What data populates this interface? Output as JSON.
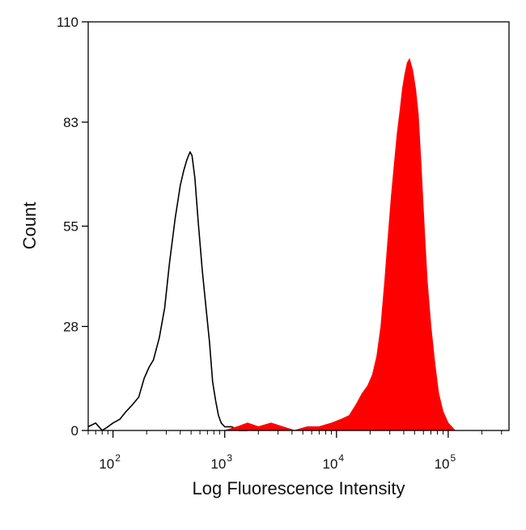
{
  "chart_data": {
    "type": "area",
    "title": "",
    "xlabel": "Log Fluorescence Intensity",
    "ylabel": "Count",
    "x_scale": "log",
    "xlim": [
      60,
      350000
    ],
    "ylim": [
      0,
      110
    ],
    "y_ticks": [
      "0",
      "28",
      "55",
      "83",
      "110"
    ],
    "x_ticks": [
      {
        "base": "10",
        "exp": "2",
        "value": 100
      },
      {
        "base": "10",
        "exp": "3",
        "value": 1000
      },
      {
        "base": "10",
        "exp": "4",
        "value": 10000
      },
      {
        "base": "10",
        "exp": "5",
        "value": 100000
      }
    ],
    "series": [
      {
        "style": "outline",
        "color": "#000000",
        "x": [
          60,
          70,
          80,
          90,
          100,
          115,
          130,
          150,
          170,
          190,
          210,
          230,
          260,
          290,
          320,
          360,
          400,
          430,
          460,
          490,
          510,
          540,
          580,
          630,
          680,
          730,
          780,
          830,
          880,
          930,
          1000,
          1150,
          1350,
          1600
        ],
        "y": [
          1,
          2,
          0,
          1,
          2,
          3,
          5,
          7,
          9,
          14,
          17,
          19,
          25,
          33,
          45,
          57,
          66,
          70,
          73,
          75,
          74,
          68,
          56,
          43,
          33,
          24,
          13,
          8,
          4,
          2,
          1,
          1,
          0,
          0
        ]
      },
      {
        "style": "filled",
        "color": "#ff0000",
        "x": [
          1000,
          1300,
          1600,
          2000,
          2600,
          3300,
          4200,
          5500,
          7000,
          9000,
          11000,
          13000,
          15000,
          17000,
          19000,
          21000,
          23000,
          25000,
          27000,
          29000,
          31000,
          33000,
          35000,
          37000,
          39000,
          41000,
          43000,
          45000,
          48000,
          51000,
          54000,
          57000,
          61000,
          65000,
          70000,
          76000,
          82000,
          90000,
          100000,
          115000
        ],
        "y": [
          0,
          1,
          2,
          1,
          2,
          1,
          0,
          1,
          1,
          2,
          3,
          4,
          7,
          10,
          12,
          15,
          20,
          28,
          40,
          52,
          63,
          72,
          80,
          86,
          92,
          96,
          99,
          100,
          97,
          92,
          85,
          72,
          55,
          40,
          28,
          18,
          10,
          5,
          2,
          0
        ]
      }
    ],
    "grid": false,
    "legend": "none"
  }
}
